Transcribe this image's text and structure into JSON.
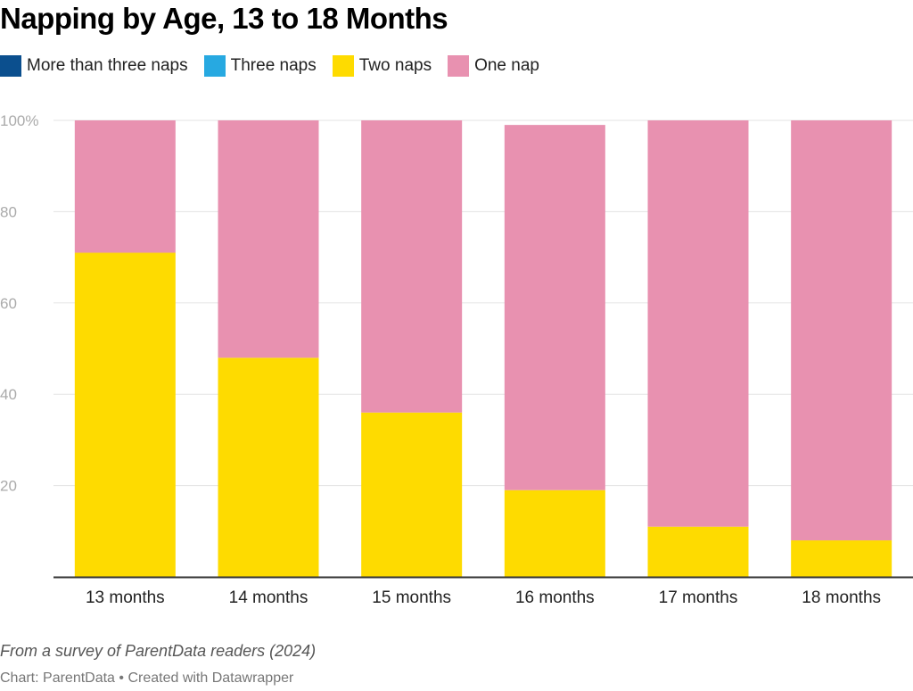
{
  "title": "Napping by Age, 13 to 18 Months",
  "note": "From a survey of ParentData readers (2024)",
  "credit": "Chart: ParentData • Created with Datawrapper",
  "chart_data": {
    "type": "bar",
    "stacked": true,
    "title": "Napping by Age, 13 to 18 Months",
    "xlabel": "",
    "ylabel": "",
    "ylim": [
      0,
      100
    ],
    "yticks": [
      20,
      40,
      60,
      80,
      100
    ],
    "ytick_labels": [
      "20",
      "40",
      "60",
      "80",
      "100%"
    ],
    "grid": true,
    "legend": "top-left",
    "categories": [
      "13 months",
      "14 months",
      "15 months",
      "16 months",
      "17 months",
      "18 months"
    ],
    "series": [
      {
        "name": "More than three naps",
        "color": "#0b4f8e",
        "values": [
          0,
          0,
          0,
          0,
          0,
          0
        ]
      },
      {
        "name": "Three naps",
        "color": "#27a9e1",
        "values": [
          0,
          0,
          0,
          0,
          0,
          0
        ]
      },
      {
        "name": "Two naps",
        "color": "#fedb00",
        "values": [
          71,
          48,
          36,
          19,
          11,
          8
        ]
      },
      {
        "name": "One nap",
        "color": "#e891b0",
        "values": [
          29,
          52,
          64,
          80,
          89,
          92
        ]
      }
    ]
  }
}
